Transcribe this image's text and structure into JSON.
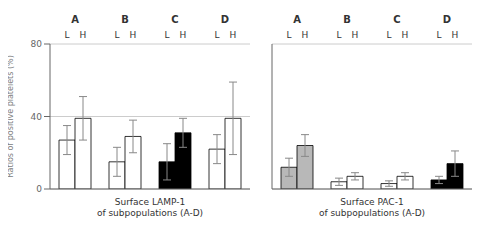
{
  "chart_data": [
    {
      "type": "bar",
      "categories": [
        "A",
        "B",
        "C",
        "D"
      ],
      "series": [
        {
          "name": "L",
          "colors": [
            "white",
            "white",
            "black",
            "white"
          ],
          "values": [
            27,
            15,
            15,
            22
          ],
          "errors": [
            8,
            8,
            10,
            8
          ]
        },
        {
          "name": "H",
          "colors": [
            "white",
            "white",
            "black",
            "white"
          ],
          "values": [
            39,
            29,
            31,
            39
          ],
          "errors": [
            12,
            9,
            8,
            20
          ]
        }
      ],
      "xlabel": "Surface LAMP-1\nof subpopulations (A-D)",
      "ylabel": "Ratios of positive platelets (%)",
      "ylim": [
        0,
        80
      ],
      "yticks": [
        0,
        40,
        80
      ],
      "grid": true,
      "tick_labels": "y"
    },
    {
      "type": "bar",
      "categories": [
        "A",
        "B",
        "C",
        "D"
      ],
      "series": [
        {
          "name": "L",
          "colors": [
            "#b8b8b8",
            "white",
            "white",
            "black"
          ],
          "values": [
            12,
            4,
            3,
            5
          ],
          "errors": [
            5,
            2,
            1.5,
            2
          ]
        },
        {
          "name": "H",
          "colors": [
            "#b8b8b8",
            "white",
            "white",
            "black"
          ],
          "values": [
            24,
            7,
            7,
            14
          ],
          "errors": [
            6,
            2,
            2,
            7
          ]
        }
      ],
      "xlabel": "Surface PAC-1\nof subpopulations (A-D)",
      "ylim": [
        0,
        80
      ],
      "yticks": [
        0,
        40,
        80
      ],
      "grid": true,
      "tick_labels": false
    }
  ]
}
